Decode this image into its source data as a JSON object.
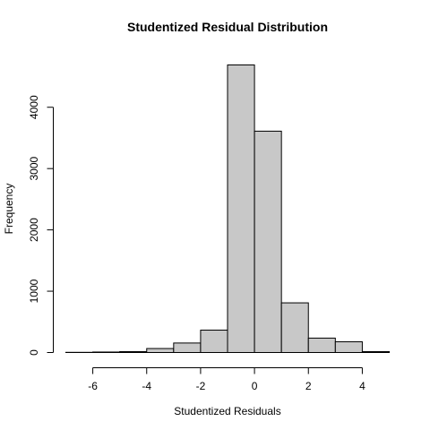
{
  "chart_data": {
    "type": "bar",
    "title": "Studentized Residual Distribution",
    "xlabel": "Studentized Residuals",
    "ylabel": "Frequency",
    "bins": [
      {
        "x0": -7,
        "x1": -6,
        "value": 3
      },
      {
        "x0": -6,
        "x1": -5,
        "value": 8
      },
      {
        "x0": -5,
        "x1": -4,
        "value": 15
      },
      {
        "x0": -4,
        "x1": -3,
        "value": 65
      },
      {
        "x0": -3,
        "x1": -2,
        "value": 155
      },
      {
        "x0": -2,
        "x1": -1,
        "value": 365
      },
      {
        "x0": -1,
        "x1": 0,
        "value": 4690
      },
      {
        "x0": 0,
        "x1": 1,
        "value": 3610
      },
      {
        "x0": 1,
        "x1": 2,
        "value": 810
      },
      {
        "x0": 2,
        "x1": 3,
        "value": 235
      },
      {
        "x0": 3,
        "x1": 4,
        "value": 175
      },
      {
        "x0": 4,
        "x1": 5,
        "value": 15
      }
    ],
    "xlim": [
      -7,
      5
    ],
    "ylim": [
      0,
      4690
    ],
    "x_ticks": [
      -6,
      -4,
      -2,
      0,
      2,
      4
    ],
    "y_ticks": [
      0,
      1000,
      2000,
      3000,
      4000
    ],
    "bar_color": "#c8c8c8",
    "edge_color": "#000000",
    "grid": false,
    "legend": "none"
  }
}
